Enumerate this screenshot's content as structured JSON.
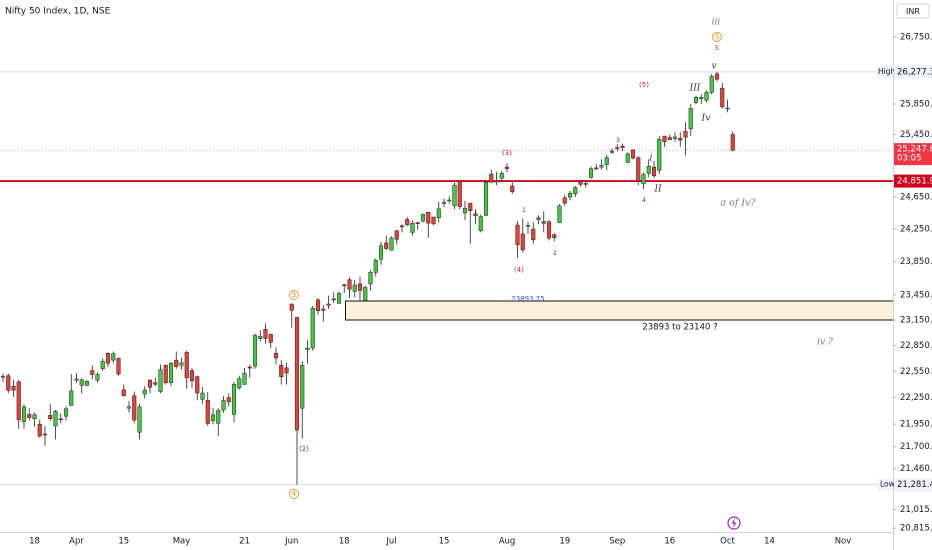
{
  "chart_data": {
    "type": "candlestick",
    "title": "Nifty 50 Index, 1D, NSE",
    "currency": "INR",
    "up_color": "#45c545",
    "down_color": "#e5413b",
    "log_scale": true,
    "grid": false,
    "ylim": [
      20774,
      27260
    ],
    "yticks": [
      {
        "value": 26750,
        "label": "26,750.00"
      },
      {
        "value": 25850,
        "label": "25,850.00"
      },
      {
        "value": 25450,
        "label": "25,450.00"
      },
      {
        "value": 24650,
        "label": "24,650.00"
      },
      {
        "value": 24250,
        "label": "24,250.00"
      },
      {
        "value": 23850,
        "label": "23,850.00"
      },
      {
        "value": 23450,
        "label": "23,450.00"
      },
      {
        "value": 23150,
        "label": "23,150.00"
      },
      {
        "value": 22850,
        "label": "22,850.00"
      },
      {
        "value": 22550,
        "label": "22,550.00"
      },
      {
        "value": 22250,
        "label": "22,250.00"
      },
      {
        "value": 21950,
        "label": "21,950.00"
      },
      {
        "value": 21700,
        "label": "21,700.00"
      },
      {
        "value": 21460,
        "label": "21,460.00"
      },
      {
        "value": 21015,
        "label": "21,015.00"
      },
      {
        "value": 20815,
        "label": "20,815.00"
      }
    ],
    "high": {
      "name": "High",
      "value": 26277.35,
      "label": "26,277.35"
    },
    "low": {
      "name": "Low",
      "value": 21281.45,
      "label": "21,281.45"
    },
    "last": {
      "value": 25247.8,
      "label": "25,247.80",
      "countdown": "03:05"
    },
    "level": {
      "value": 24851.9,
      "label": "24,851.90"
    },
    "annotations": [
      "iii",
      "5",
      "5",
      "v",
      "(5)",
      "III",
      "Iv",
      "3",
      "(3)",
      "i",
      "II",
      "4",
      "a of Iv?",
      "1",
      "(4)",
      "2",
      "3",
      "23893.75",
      "23893 to 23140 ?",
      "iv ?",
      "(2)",
      "4"
    ],
    "categories": [
      null,
      null,
      null,
      null,
      null,
      null,
      "18",
      null,
      null,
      null,
      null,
      null,
      null,
      null,
      "Apr",
      null,
      null,
      null,
      null,
      null,
      null,
      null,
      null,
      "15",
      null,
      null,
      null,
      null,
      null,
      null,
      null,
      null,
      null,
      null,
      "May",
      null,
      null,
      null,
      null,
      null,
      null,
      null,
      null,
      null,
      null,
      null,
      "21",
      null,
      null,
      null,
      null,
      null,
      null,
      null,
      null,
      "Jun",
      null,
      null,
      null,
      null,
      null,
      null,
      null,
      null,
      null,
      "18",
      null,
      null,
      null,
      null,
      null,
      null,
      null,
      null,
      "Jul",
      null,
      null,
      null,
      null,
      null,
      null,
      null,
      null,
      null,
      "15",
      null,
      null,
      null,
      null,
      null,
      null,
      null,
      null,
      null,
      null,
      null,
      "Aug",
      null,
      null,
      null,
      null,
      null,
      null,
      null,
      null,
      null,
      null,
      "19",
      null,
      null,
      null,
      null,
      null,
      null,
      null,
      null,
      null,
      "Sep",
      null,
      null,
      null,
      null,
      null,
      null,
      null,
      null,
      null,
      "16",
      null,
      null,
      null,
      null,
      null,
      null,
      null,
      null,
      null,
      null,
      "Oct",
      null,
      null,
      null,
      null,
      null,
      null,
      null,
      "14",
      null,
      null,
      null,
      null,
      null,
      null,
      null,
      null,
      null,
      null,
      null,
      null,
      null,
      "Nov"
    ],
    "ohlc": [
      [
        22490,
        22525,
        22430,
        22495
      ],
      [
        22500,
        22525,
        22300,
        22333
      ],
      [
        22380,
        22450,
        22260,
        22335
      ],
      [
        22430,
        22450,
        21900,
        21998
      ],
      [
        21980,
        22170,
        21900,
        22146
      ],
      [
        22060,
        22130,
        21990,
        22023
      ],
      [
        22010,
        22080,
        21920,
        22056
      ],
      [
        21950,
        22000,
        21800,
        21817
      ],
      [
        21840,
        21930,
        21710,
        21839
      ],
      [
        22050,
        22180,
        21990,
        22012
      ],
      [
        21930,
        22110,
        21780,
        22096
      ],
      [
        22010,
        22070,
        21960,
        22005
      ],
      [
        22040,
        22150,
        21990,
        22123
      ],
      [
        22160,
        22520,
        22160,
        22327
      ],
      [
        22450,
        22530,
        22420,
        22462
      ],
      [
        22390,
        22470,
        22300,
        22453
      ],
      [
        22390,
        22450,
        22380,
        22435
      ],
      [
        22560,
        22620,
        22460,
        22515
      ],
      [
        22450,
        22540,
        22420,
        22514
      ],
      [
        22580,
        22700,
        22560,
        22666
      ],
      [
        22760,
        22770,
        22600,
        22643
      ],
      [
        22680,
        22780,
        22640,
        22754
      ],
      [
        22700,
        22710,
        22500,
        22519
      ],
      [
        22340,
        22400,
        22260,
        22273
      ],
      [
        22130,
        22210,
        22080,
        22147
      ],
      [
        22270,
        22320,
        21960,
        21996
      ],
      [
        21860,
        22180,
        21780,
        22147
      ],
      [
        22290,
        22380,
        22240,
        22336
      ],
      [
        22450,
        22460,
        22300,
        22368
      ],
      [
        22420,
        22480,
        22380,
        22402
      ],
      [
        22320,
        22630,
        22300,
        22570
      ],
      [
        22620,
        22630,
        22400,
        22420
      ],
      [
        22420,
        22660,
        22380,
        22643
      ],
      [
        22680,
        22780,
        22580,
        22605
      ],
      [
        22620,
        22710,
        22570,
        22648
      ],
      [
        22770,
        22790,
        22350,
        22476
      ],
      [
        22560,
        22590,
        22360,
        22442
      ],
      [
        22490,
        22500,
        22220,
        22303
      ],
      [
        22230,
        22370,
        22180,
        22302
      ],
      [
        22220,
        22310,
        21930,
        21958
      ],
      [
        21990,
        22130,
        21950,
        22055
      ],
      [
        21960,
        22130,
        21820,
        22104
      ],
      [
        22110,
        22270,
        22080,
        22217
      ],
      [
        22250,
        22300,
        22150,
        22201
      ],
      [
        22060,
        22430,
        21970,
        22403
      ],
      [
        22360,
        22500,
        22340,
        22466
      ],
      [
        22400,
        22590,
        22400,
        22530
      ],
      [
        22600,
        22630,
        22480,
        22598
      ],
      [
        22610,
        22990,
        22580,
        22968
      ],
      [
        22930,
        23030,
        22900,
        22957
      ],
      [
        23040,
        23110,
        22870,
        22932
      ],
      [
        22980,
        22990,
        22820,
        22888
      ],
      [
        22760,
        22830,
        22630,
        22704
      ],
      [
        22620,
        22680,
        22400,
        22488
      ],
      [
        22590,
        22650,
        22400,
        22531
      ],
      [
        23340,
        23340,
        23060,
        23264
      ],
      [
        23180,
        23180,
        21281.45,
        21884
      ],
      [
        22130,
        22670,
        21790,
        22620
      ],
      [
        22800,
        22910,
        22640,
        22821
      ],
      [
        22820,
        23320,
        22790,
        23290
      ],
      [
        23390,
        23410,
        23210,
        23259
      ],
      [
        23280,
        23330,
        23130,
        23264
      ],
      [
        23340,
        23440,
        23280,
        23323
      ],
      [
        23400,
        23480,
        23350,
        23399
      ],
      [
        23350,
        23490,
        23340,
        23466
      ],
      [
        23570,
        23580,
        23470,
        23557
      ],
      [
        23630,
        23660,
        23410,
        23516
      ],
      [
        23490,
        23630,
        23420,
        23567
      ],
      [
        23580,
        23670,
        23350,
        23501
      ],
      [
        23380,
        23560,
        23350,
        23538
      ],
      [
        23580,
        23750,
        23500,
        23721
      ],
      [
        23720,
        23890,
        23670,
        23868
      ],
      [
        23880,
        24090,
        23810,
        24044
      ],
      [
        24080,
        24170,
        23990,
        24010
      ],
      [
        23990,
        24160,
        23990,
        24141
      ],
      [
        24230,
        24240,
        24060,
        24124
      ],
      [
        24290,
        24310,
        24210,
        24287
      ],
      [
        24370,
        24400,
        24290,
        24302
      ],
      [
        24210,
        24360,
        24170,
        24323
      ],
      [
        24330,
        24340,
        24240,
        24320
      ],
      [
        24350,
        24440,
        24330,
        24433
      ],
      [
        24460,
        24460,
        24140,
        24324
      ],
      [
        24400,
        24400,
        24300,
        24315
      ],
      [
        24390,
        24590,
        24330,
        24502
      ],
      [
        24570,
        24630,
        24520,
        24586
      ],
      [
        24610,
        24660,
        24570,
        24613
      ],
      [
        24540,
        24840,
        24500,
        24800
      ],
      [
        24850,
        24850,
        24500,
        24531
      ],
      [
        24450,
        24600,
        24360,
        24509
      ],
      [
        24570,
        24580,
        24070,
        24479
      ],
      [
        24440,
        24500,
        24310,
        24414
      ],
      [
        24230,
        24430,
        24210,
        24406
      ],
      [
        24420,
        24860,
        24410,
        24835
      ],
      [
        24940,
        24999,
        24830,
        24836
      ],
      [
        24840,
        24970,
        24800,
        24857
      ],
      [
        24890,
        24980,
        24850,
        24951
      ],
      [
        25030,
        25080,
        24960,
        25011
      ],
      [
        24790,
        24850,
        24690,
        24718
      ],
      [
        24300,
        24350,
        23893,
        24056
      ],
      [
        24190,
        24380,
        23960,
        23993
      ],
      [
        24290,
        24340,
        24190,
        24297
      ],
      [
        24250,
        24340,
        24070,
        24117
      ],
      [
        24390,
        24420,
        24310,
        24368
      ],
      [
        24320,
        24470,
        24210,
        24347
      ],
      [
        24340,
        24360,
        24110,
        24139
      ],
      [
        24180,
        24200,
        24100,
        24144
      ],
      [
        24330,
        24560,
        24330,
        24541
      ],
      [
        24640,
        24680,
        24540,
        24573
      ],
      [
        24650,
        24730,
        24610,
        24698
      ],
      [
        24690,
        24790,
        24650,
        24770
      ],
      [
        24850,
        24870,
        24780,
        24811
      ],
      [
        24820,
        24860,
        24770,
        24823
      ],
      [
        24900,
        25040,
        24880,
        25010
      ],
      [
        25020,
        25070,
        24990,
        25017
      ],
      [
        25030,
        25130,
        25000,
        25052
      ],
      [
        25060,
        25190,
        24990,
        25152
      ],
      [
        25220,
        25270,
        25200,
        25236
      ],
      [
        25280,
        25330,
        25235,
        25279
      ],
      [
        25300,
        25330,
        25235,
        25280
      ],
      [
        25090,
        25220,
        25080,
        25199
      ],
      [
        25250,
        25260,
        25130,
        25145
      ],
      [
        25150,
        25170,
        24800,
        24852
      ],
      [
        24820,
        24960,
        24750,
        24936
      ],
      [
        24950,
        25130,
        24900,
        25041
      ],
      [
        25030,
        25110,
        24890,
        24918
      ],
      [
        24990,
        25430,
        24940,
        25389
      ],
      [
        25430,
        25430,
        25290,
        25357
      ],
      [
        25410,
        25450,
        25380,
        25383
      ],
      [
        25400,
        25480,
        25360,
        25418
      ],
      [
        25400,
        25480,
        25290,
        25378
      ],
      [
        25490,
        25610,
        25180,
        25416
      ],
      [
        25525,
        25850,
        25430,
        25791
      ],
      [
        25870,
        25960,
        25850,
        25939
      ],
      [
        25920,
        25980,
        25850,
        25940
      ],
      [
        25900,
        26030,
        25870,
        26004
      ],
      [
        26005,
        26250,
        25980,
        26216
      ],
      [
        26250,
        26277.35,
        26150,
        26179
      ],
      [
        26060,
        26130,
        25790,
        25811
      ],
      [
        25790,
        25910,
        25740,
        25797
      ],
      [
        25450,
        25490,
        25230,
        25247.8
      ],
      null,
      null,
      null,
      null,
      null,
      null,
      null,
      null,
      null,
      null,
      null,
      null,
      null,
      null,
      null,
      null,
      null,
      null,
      null,
      null,
      null
    ]
  }
}
